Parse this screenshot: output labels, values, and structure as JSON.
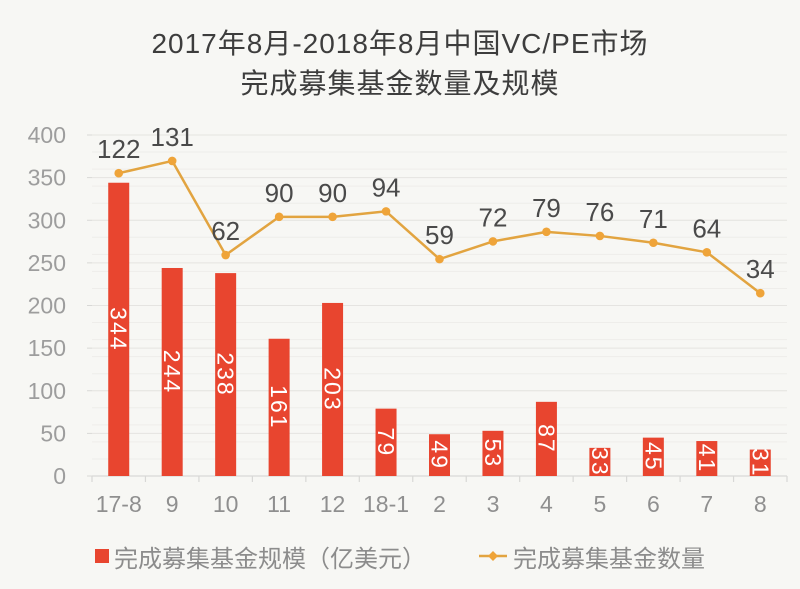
{
  "title": {
    "line1": "2017年8月-2018年8月中国VC/PE市场",
    "line2": "完成募集基金数量及规模"
  },
  "chart_data": {
    "type": "combo",
    "title": "2017年8月-2018年8月中国VC/PE市场完成募集基金数量及规模",
    "categories": [
      "17-8",
      "9",
      "10",
      "11",
      "12",
      "18-1",
      "2",
      "3",
      "4",
      "5",
      "6",
      "7",
      "8"
    ],
    "series": [
      {
        "name": "完成募集基金规模（亿美元）",
        "type": "bar",
        "axis": "primary",
        "color": "#e8452f",
        "values": [
          344,
          244,
          238,
          161,
          203,
          79,
          49,
          53,
          87,
          33,
          45,
          41,
          31
        ],
        "data_labels": "inside bars, white, rotated 90"
      },
      {
        "name": "完成募集基金数量",
        "type": "line",
        "axis": "secondary_hidden",
        "color": "#e2a440",
        "marker_color": "#efa439",
        "values": [
          122,
          131,
          62,
          90,
          90,
          94,
          59,
          72,
          79,
          76,
          71,
          64,
          34
        ],
        "data_labels": "above points, dark gray"
      }
    ],
    "xlabel": "",
    "ylabel": "",
    "y_axis": {
      "min": 0,
      "max": 400,
      "tick_interval": 50,
      "ticks": [
        400,
        350,
        300,
        250,
        200,
        150,
        100,
        50,
        0
      ]
    },
    "secondary_y_axis": {
      "visible": false,
      "min": -100,
      "max": 150
    },
    "grid": {
      "horizontal": true,
      "minor_interval": 20,
      "major_interval": 50
    },
    "legend_position": "bottom"
  },
  "colors": {
    "background": "#f7f7f4",
    "title_text": "#3d3d3d",
    "axis_tick_text": "#9d9d9d",
    "x_axis_text": "#8f8f8f",
    "line_label_text": "#4a4a4a",
    "bar_label_text": "#ffffff",
    "grid_minor": "#eeedea",
    "grid_major": "#e5e4e1",
    "axis_line": "#d8d8d6",
    "legend_text": "#8c8c8c"
  }
}
